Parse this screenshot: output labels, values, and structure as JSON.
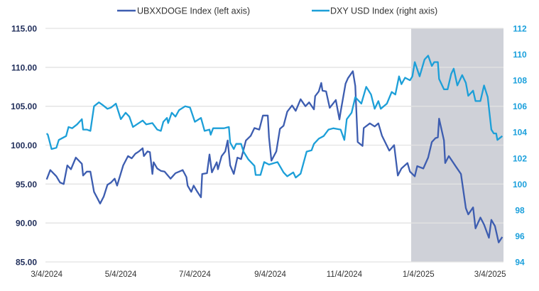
{
  "chart_data": {
    "type": "line",
    "title": "",
    "legend_placement": "top",
    "grid": true,
    "x_type": "date",
    "xlim": [
      "2024-03-03",
      "2025-03-15"
    ],
    "x_ticks": [
      {
        "date": "2024-03-04",
        "label": "3/4/2024"
      },
      {
        "date": "2024-05-04",
        "label": "5/4/2024"
      },
      {
        "date": "2024-07-04",
        "label": "7/4/2024"
      },
      {
        "date": "2024-09-04",
        "label": "9/4/2024"
      },
      {
        "date": "2024-11-04",
        "label": "11/4/2024"
      },
      {
        "date": "2025-01-04",
        "label": "1/4/2025"
      },
      {
        "date": "2025-03-04",
        "label": "3/4/2025"
      }
    ],
    "y_left": {
      "lim": [
        85,
        115
      ],
      "ticks": [
        "85.00",
        "90.00",
        "95.00",
        "100.00",
        "105.00",
        "110.00",
        "115.00"
      ]
    },
    "y_right": {
      "lim": [
        94,
        112
      ],
      "ticks": [
        "94",
        "96",
        "98",
        "100",
        "102",
        "104",
        "106",
        "108",
        "110",
        "112"
      ]
    },
    "shaded_region": [
      "2024-12-29",
      "2025-03-15"
    ],
    "colors": {
      "left_series": "#3d5db0",
      "right_series": "#1c9fd8",
      "shade": "#cfd1d8",
      "grid": "#e2e2e2",
      "left_axis": "#1f2d5a",
      "right_axis": "#1ba0dc"
    },
    "series": [
      {
        "name": "UBXXDOGE Index (left axis)",
        "axis": "left",
        "points": [
          [
            "2024-03-04",
            95.6
          ],
          [
            "2024-03-07",
            96.8
          ],
          [
            "2024-03-12",
            96.0
          ],
          [
            "2024-03-15",
            95.2
          ],
          [
            "2024-03-18",
            95.0
          ],
          [
            "2024-03-21",
            97.4
          ],
          [
            "2024-03-24",
            96.9
          ],
          [
            "2024-03-28",
            98.4
          ],
          [
            "2024-04-02",
            97.6
          ],
          [
            "2024-04-03",
            96.1
          ],
          [
            "2024-04-06",
            96.6
          ],
          [
            "2024-04-09",
            96.6
          ],
          [
            "2024-04-12",
            94.0
          ],
          [
            "2024-04-15",
            93.1
          ],
          [
            "2024-04-17",
            92.5
          ],
          [
            "2024-04-20",
            93.4
          ],
          [
            "2024-04-23",
            94.9
          ],
          [
            "2024-04-26",
            95.2
          ],
          [
            "2024-04-29",
            95.7
          ],
          [
            "2024-05-01",
            94.8
          ],
          [
            "2024-05-06",
            97.4
          ],
          [
            "2024-05-10",
            98.6
          ],
          [
            "2024-05-13",
            98.3
          ],
          [
            "2024-05-16",
            98.9
          ],
          [
            "2024-05-19",
            99.2
          ],
          [
            "2024-05-22",
            99.6
          ],
          [
            "2024-05-23",
            98.6
          ],
          [
            "2024-05-26",
            99.2
          ],
          [
            "2024-05-28",
            99.1
          ],
          [
            "2024-05-30",
            96.3
          ],
          [
            "2024-05-31",
            97.8
          ],
          [
            "2024-06-03",
            97.0
          ],
          [
            "2024-06-06",
            96.7
          ],
          [
            "2024-06-09",
            96.6
          ],
          [
            "2024-06-14",
            95.7
          ],
          [
            "2024-06-18",
            96.4
          ],
          [
            "2024-06-21",
            96.6
          ],
          [
            "2024-06-24",
            96.8
          ],
          [
            "2024-06-27",
            95.9
          ],
          [
            "2024-06-28",
            94.8
          ],
          [
            "2024-07-01",
            94.0
          ],
          [
            "2024-07-03",
            94.8
          ],
          [
            "2024-07-06",
            94.0
          ],
          [
            "2024-07-09",
            93.3
          ],
          [
            "2024-07-10",
            96.3
          ],
          [
            "2024-07-14",
            96.4
          ],
          [
            "2024-07-16",
            98.8
          ],
          [
            "2024-07-18",
            96.5
          ],
          [
            "2024-07-22",
            97.8
          ],
          [
            "2024-07-23",
            96.9
          ],
          [
            "2024-07-26",
            98.6
          ],
          [
            "2024-07-29",
            99.2
          ],
          [
            "2024-07-31",
            100.6
          ],
          [
            "2024-08-02",
            97.4
          ],
          [
            "2024-08-05",
            96.3
          ],
          [
            "2024-08-08",
            98.4
          ],
          [
            "2024-08-11",
            98.2
          ],
          [
            "2024-08-15",
            100.6
          ],
          [
            "2024-08-19",
            101.2
          ],
          [
            "2024-08-22",
            102.2
          ],
          [
            "2024-08-26",
            102.0
          ],
          [
            "2024-08-29",
            103.8
          ],
          [
            "2024-09-02",
            103.8
          ],
          [
            "2024-09-03",
            101.0
          ],
          [
            "2024-09-05",
            98.0
          ],
          [
            "2024-09-09",
            99.2
          ],
          [
            "2024-09-12",
            102.1
          ],
          [
            "2024-09-15",
            102.5
          ],
          [
            "2024-09-18",
            104.3
          ],
          [
            "2024-09-22",
            105.1
          ],
          [
            "2024-09-25",
            104.4
          ],
          [
            "2024-09-29",
            105.9
          ],
          [
            "2024-10-03",
            105.0
          ],
          [
            "2024-10-06",
            105.5
          ],
          [
            "2024-10-10",
            104.6
          ],
          [
            "2024-10-11",
            106.3
          ],
          [
            "2024-10-14",
            106.9
          ],
          [
            "2024-10-16",
            108.0
          ],
          [
            "2024-10-17",
            107.0
          ],
          [
            "2024-10-20",
            106.9
          ],
          [
            "2024-10-23",
            104.8
          ],
          [
            "2024-10-28",
            105.8
          ],
          [
            "2024-10-31",
            103.3
          ],
          [
            "2024-11-01",
            104.3
          ],
          [
            "2024-11-05",
            107.9
          ],
          [
            "2024-11-07",
            108.6
          ],
          [
            "2024-11-11",
            109.5
          ],
          [
            "2024-11-13",
            107.6
          ],
          [
            "2024-11-15",
            100.4
          ],
          [
            "2024-11-19",
            99.9
          ],
          [
            "2024-11-20",
            102.2
          ],
          [
            "2024-11-25",
            102.8
          ],
          [
            "2024-11-29",
            102.4
          ],
          [
            "2024-12-02",
            102.8
          ],
          [
            "2024-12-05",
            101.2
          ],
          [
            "2024-12-11",
            99.3
          ],
          [
            "2024-12-15",
            100.0
          ],
          [
            "2024-12-18",
            96.1
          ],
          [
            "2024-12-21",
            97.0
          ],
          [
            "2024-12-26",
            97.7
          ],
          [
            "2024-12-28",
            96.6
          ],
          [
            "2025-01-01",
            96.0
          ],
          [
            "2025-01-03",
            97.3
          ],
          [
            "2025-01-08",
            97.0
          ],
          [
            "2025-01-12",
            98.4
          ],
          [
            "2025-01-15",
            100.4
          ],
          [
            "2025-01-18",
            100.9
          ],
          [
            "2025-01-20",
            101.0
          ],
          [
            "2025-01-21",
            103.4
          ],
          [
            "2025-01-25",
            100.6
          ],
          [
            "2025-01-26",
            97.7
          ],
          [
            "2025-01-29",
            98.6
          ],
          [
            "2025-02-04",
            97.2
          ],
          [
            "2025-02-08",
            96.3
          ],
          [
            "2025-02-12",
            91.9
          ],
          [
            "2025-02-14",
            91.1
          ],
          [
            "2025-02-18",
            92.0
          ],
          [
            "2025-02-20",
            89.3
          ],
          [
            "2025-02-24",
            90.7
          ],
          [
            "2025-02-27",
            89.8
          ],
          [
            "2025-03-03",
            88.1
          ],
          [
            "2025-03-05",
            90.4
          ],
          [
            "2025-03-08",
            89.6
          ],
          [
            "2025-03-11",
            87.5
          ],
          [
            "2025-03-14",
            88.2
          ]
        ]
      },
      {
        "name": "DXY USD Index (right axis)",
        "axis": "right",
        "points": [
          [
            "2024-03-04",
            103.9
          ],
          [
            "2024-03-05",
            103.8
          ],
          [
            "2024-03-08",
            102.7
          ],
          [
            "2024-03-12",
            102.8
          ],
          [
            "2024-03-14",
            103.4
          ],
          [
            "2024-03-20",
            103.7
          ],
          [
            "2024-03-22",
            104.4
          ],
          [
            "2024-03-25",
            104.3
          ],
          [
            "2024-03-29",
            104.6
          ],
          [
            "2024-04-02",
            105.0
          ],
          [
            "2024-04-03",
            104.2
          ],
          [
            "2024-04-06",
            104.2
          ],
          [
            "2024-04-09",
            104.1
          ],
          [
            "2024-04-12",
            106.0
          ],
          [
            "2024-04-16",
            106.3
          ],
          [
            "2024-04-19",
            106.1
          ],
          [
            "2024-04-23",
            105.8
          ],
          [
            "2024-04-26",
            105.9
          ],
          [
            "2024-04-30",
            106.2
          ],
          [
            "2024-05-04",
            105.0
          ],
          [
            "2024-05-08",
            105.5
          ],
          [
            "2024-05-11",
            105.2
          ],
          [
            "2024-05-14",
            104.4
          ],
          [
            "2024-05-22",
            104.9
          ],
          [
            "2024-05-25",
            104.6
          ],
          [
            "2024-05-30",
            104.7
          ],
          [
            "2024-06-03",
            104.2
          ],
          [
            "2024-06-06",
            104.1
          ],
          [
            "2024-06-08",
            104.8
          ],
          [
            "2024-06-11",
            105.1
          ],
          [
            "2024-06-12",
            104.7
          ],
          [
            "2024-06-15",
            105.5
          ],
          [
            "2024-06-18",
            105.2
          ],
          [
            "2024-06-21",
            105.7
          ],
          [
            "2024-06-26",
            106.0
          ],
          [
            "2024-06-30",
            105.9
          ],
          [
            "2024-07-04",
            104.8
          ],
          [
            "2024-07-09",
            105.1
          ],
          [
            "2024-07-12",
            104.1
          ],
          [
            "2024-07-16",
            104.2
          ],
          [
            "2024-07-17",
            103.8
          ],
          [
            "2024-07-19",
            104.3
          ],
          [
            "2024-07-28",
            104.3
          ],
          [
            "2024-08-01",
            104.4
          ],
          [
            "2024-08-02",
            103.2
          ],
          [
            "2024-08-05",
            102.7
          ],
          [
            "2024-08-07",
            103.1
          ],
          [
            "2024-08-11",
            103.1
          ],
          [
            "2024-08-13",
            102.5
          ],
          [
            "2024-08-17",
            101.9
          ],
          [
            "2024-08-22",
            101.4
          ],
          [
            "2024-08-23",
            100.7
          ],
          [
            "2024-08-27",
            100.7
          ],
          [
            "2024-08-30",
            101.7
          ],
          [
            "2024-09-03",
            101.5
          ],
          [
            "2024-09-10",
            101.7
          ],
          [
            "2024-09-15",
            100.9
          ],
          [
            "2024-09-18",
            100.6
          ],
          [
            "2024-09-23",
            100.9
          ],
          [
            "2024-09-25",
            100.5
          ],
          [
            "2024-09-29",
            100.8
          ],
          [
            "2024-10-04",
            102.5
          ],
          [
            "2024-10-08",
            102.6
          ],
          [
            "2024-10-10",
            103.1
          ],
          [
            "2024-10-14",
            103.5
          ],
          [
            "2024-10-18",
            103.7
          ],
          [
            "2024-10-22",
            104.2
          ],
          [
            "2024-10-26",
            104.3
          ],
          [
            "2024-11-01",
            104.2
          ],
          [
            "2024-11-04",
            103.4
          ],
          [
            "2024-11-06",
            105.0
          ],
          [
            "2024-11-10",
            105.5
          ],
          [
            "2024-11-13",
            106.7
          ],
          [
            "2024-11-18",
            106.2
          ],
          [
            "2024-11-22",
            107.5
          ],
          [
            "2024-11-26",
            106.9
          ],
          [
            "2024-11-29",
            105.8
          ],
          [
            "2024-12-02",
            106.4
          ],
          [
            "2024-12-04",
            105.8
          ],
          [
            "2024-12-09",
            106.2
          ],
          [
            "2024-12-13",
            107.1
          ],
          [
            "2024-12-16",
            106.9
          ],
          [
            "2024-12-19",
            108.3
          ],
          [
            "2024-12-21",
            107.7
          ],
          [
            "2024-12-24",
            108.2
          ],
          [
            "2024-12-28",
            108.0
          ],
          [
            "2024-12-30",
            108.3
          ],
          [
            "2025-01-01",
            109.4
          ],
          [
            "2025-01-05",
            108.3
          ],
          [
            "2025-01-09",
            109.6
          ],
          [
            "2025-01-12",
            109.9
          ],
          [
            "2025-01-15",
            109.1
          ],
          [
            "2025-01-17",
            109.4
          ],
          [
            "2025-01-20",
            109.4
          ],
          [
            "2025-01-21",
            108.1
          ],
          [
            "2025-01-25",
            107.3
          ],
          [
            "2025-01-28",
            107.3
          ],
          [
            "2025-01-31",
            108.5
          ],
          [
            "2025-02-02",
            108.9
          ],
          [
            "2025-02-05",
            107.6
          ],
          [
            "2025-02-09",
            108.4
          ],
          [
            "2025-02-12",
            107.8
          ],
          [
            "2025-02-14",
            106.8
          ],
          [
            "2025-02-18",
            107.2
          ],
          [
            "2025-02-20",
            106.4
          ],
          [
            "2025-02-24",
            106.4
          ],
          [
            "2025-02-27",
            107.6
          ],
          [
            "2025-03-02",
            106.7
          ],
          [
            "2025-03-05",
            104.2
          ],
          [
            "2025-03-07",
            103.9
          ],
          [
            "2025-03-09",
            103.9
          ],
          [
            "2025-03-10",
            103.4
          ],
          [
            "2025-03-14",
            103.7
          ]
        ]
      }
    ]
  }
}
